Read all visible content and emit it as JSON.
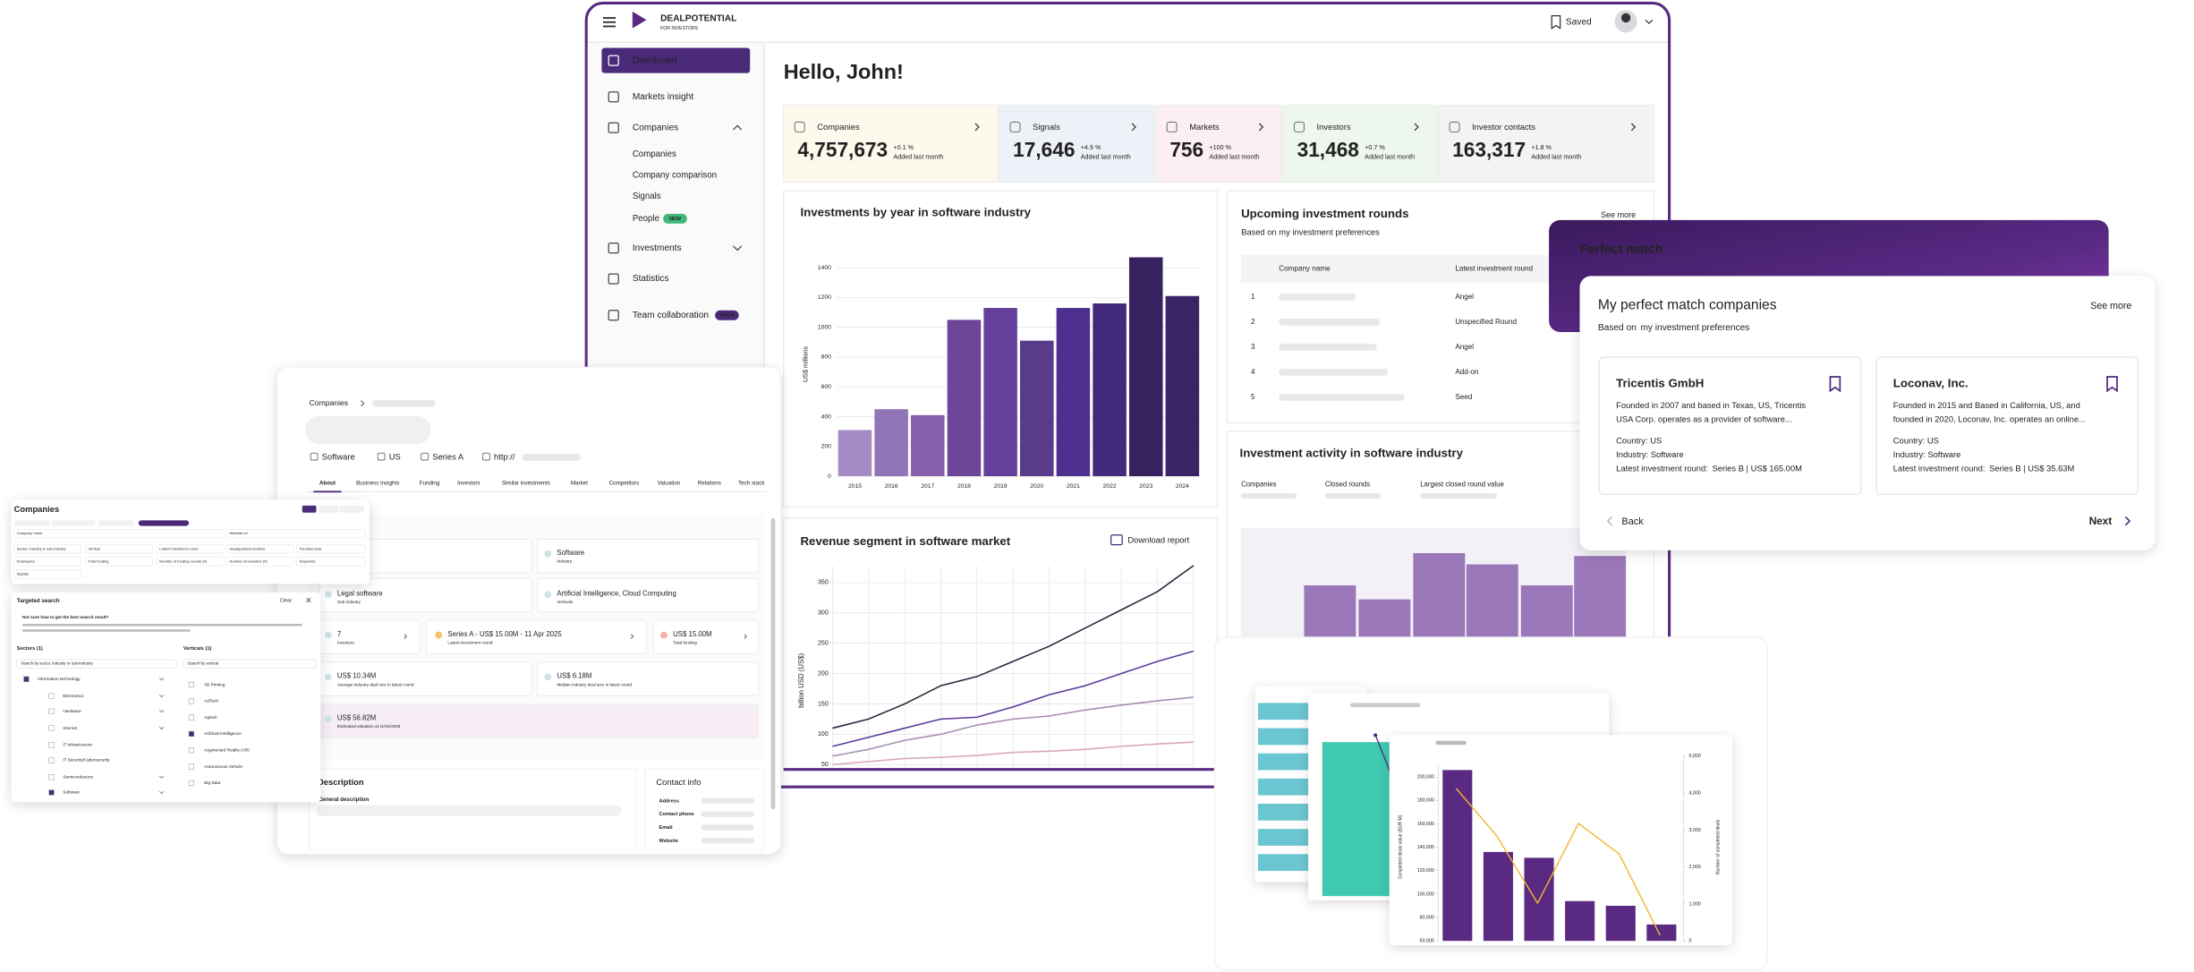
{
  "header": {
    "brand": "DEALPOTENTIAL",
    "tagline": "FOR INVESTORS",
    "saved": "Saved"
  },
  "nav": [
    "Dashboard",
    "Markets insight",
    "Companies",
    "Investments",
    "Statistics",
    "Team collaboration"
  ],
  "nav_badge": "SOON",
  "companies_menu": [
    "Companies",
    "Company comparison",
    "Signals",
    "People"
  ],
  "people_badge": "NEW",
  "greeting": "Hello, John!",
  "stats": [
    {
      "label": "Companies",
      "value": "4,757,673",
      "change": "+0.1 %",
      "note": "Added last month"
    },
    {
      "label": "Signals",
      "value": "17,646",
      "change": "+4.9 %",
      "note": "Added last month"
    },
    {
      "label": "Markets",
      "value": "756",
      "change": "+100 %",
      "note": "Added last month"
    },
    {
      "label": "Investors",
      "value": "31,468",
      "change": "+0.7 %",
      "note": "Added last month"
    },
    {
      "label": "Investor contacts",
      "value": "163,317",
      "change": "+1.8 %",
      "note": "Added last month"
    }
  ],
  "investments_chart": {
    "type": "bar",
    "title": "Investments by year in software industry",
    "ylabel": "US$ millions",
    "categories": [
      "2015",
      "2016",
      "2017",
      "2018",
      "2019",
      "2020",
      "2021",
      "2022",
      "2023",
      "2024"
    ],
    "values": [
      310,
      450,
      410,
      1050,
      1130,
      910,
      1130,
      1160,
      1470,
      1210
    ],
    "colors": [
      "#a68cc4",
      "#9274b8",
      "#8660ad",
      "#6c4698",
      "#65409a",
      "#5a3a8a",
      "#4e3090",
      "#43297c",
      "#36225f",
      "#3a2466"
    ],
    "ylim": [
      0,
      1500
    ],
    "yticks": [
      0,
      200,
      400,
      600,
      800,
      1000,
      1200,
      1400
    ],
    "grid": true
  },
  "revenue_chart": {
    "type": "line",
    "title": "Revenue segment in software market",
    "action": "Download report",
    "ylabel": "billion USD (US$)",
    "ylim": [
      45,
      385
    ],
    "yticks": [
      50,
      100,
      150,
      200,
      250,
      300,
      350
    ],
    "grid": true,
    "series": [
      {
        "color": "#2e2340",
        "values": [
          110,
          125,
          150,
          180,
          195,
          220,
          245,
          275,
          305,
          335,
          378
        ]
      },
      {
        "color": "#5b3a9a",
        "values": [
          80,
          95,
          110,
          125,
          128,
          145,
          165,
          180,
          200,
          220,
          237
        ]
      },
      {
        "color": "#a58bb3",
        "values": [
          64,
          75,
          90,
          100,
          115,
          125,
          130,
          140,
          148,
          155,
          161
        ]
      },
      {
        "color": "#d7a8b5",
        "values": [
          50,
          55,
          60,
          62,
          65,
          70,
          72,
          75,
          80,
          84,
          87
        ]
      }
    ]
  },
  "upcoming": {
    "title": "Upcoming investment rounds",
    "subtitle": "Based on my investment preferences",
    "more": "See more",
    "columns": [
      "Company name",
      "Latest investment round"
    ],
    "rows": [
      [
        "1",
        "Angel"
      ],
      [
        "2",
        "Unspecified Round"
      ],
      [
        "3",
        "Angel"
      ],
      [
        "4",
        "Add-on"
      ],
      [
        "5",
        "Seed"
      ]
    ]
  },
  "activity": {
    "title": "Investment activity in software industry",
    "columns": [
      "Companies",
      "Closed rounds",
      "Largest closed round value"
    ]
  },
  "perfect_match": {
    "banner": "Perfect match",
    "title": "My perfect match companies",
    "more": "See more",
    "based": "Based on",
    "link": "my investment preferences",
    "back": "Back",
    "next": "Next",
    "cards": [
      {
        "name": "Tricentis GmbH",
        "description": "Founded in 2007 and based in Texas, US, Tricentis USA Corp. operates as a provider of software...",
        "country": "Country: US",
        "industry": "Industry: Software",
        "round_label": "Latest investment round:",
        "round": "Series B | US$ 165.00M"
      },
      {
        "name": "Loconav, Inc.",
        "description": "Founded in 2015 and Based in California, US, and founded in 2020, Loconav, Inc. operates an online...",
        "country": "Country: US",
        "industry": "Industry: Software",
        "round_label": "Latest investment round:",
        "round": "Series B | US$ 35.63M"
      }
    ]
  },
  "company": {
    "breadcrumb": "Companies",
    "tags": [
      "Software",
      "US",
      "Series A",
      "http://"
    ],
    "tabs": [
      "About",
      "Business insights",
      "Funding",
      "Investors",
      "Similar investments",
      "Market",
      "Competitors",
      "Valuation",
      "Relations",
      "Tech stack"
    ],
    "facts": [
      {
        "value": "Software",
        "label": "Industry"
      },
      {
        "value": "Legal software",
        "label": "Sub industry"
      },
      {
        "value": "Artificial Intelligence, Cloud Computing",
        "label": "Verticals"
      },
      {
        "value": "7",
        "label": "Investors"
      },
      {
        "value": "Series A - US$ 15.00M - 11 Apr 2025",
        "label": "Latest investment round"
      },
      {
        "value": "US$ 15.00M",
        "label": "Total funding"
      },
      {
        "value": "US$ 10.34M",
        "label": "Average industry deal size in latest round"
      },
      {
        "value": "US$ 6.18M",
        "label": "Median industry deal size in latest round"
      },
      {
        "value": "US$ 56.82M",
        "label": "Estimated valuation at 11/04/2025"
      }
    ],
    "description": "Description",
    "general": "General description",
    "contact": "Contact info",
    "contact_fields": [
      "Address",
      "Contact phone",
      "Email",
      "Website"
    ]
  },
  "search": {
    "title": "Companies",
    "fields": [
      "Company name",
      "Website url",
      "Sector, industry & sub-industry",
      "Vertical",
      "Latest investment round",
      "Headquarters location",
      "Founded year",
      "Employees",
      "Total funding",
      "Number of funding rounds (#)",
      "Number of investors (#)",
      "Keywords",
      "Signals"
    ],
    "targeted": "Targeted search",
    "clear": "Clear",
    "hint": "Not sure how to get the best search result?",
    "sectors_title": "Sectors (1)",
    "verticals_title": "Verticals (1)",
    "sector_placeholder": "Search by sector, industry or sub-industry",
    "vertical_placeholder": "Search by vertical",
    "sectors": [
      "Information technology",
      "Electronics",
      "Hardware",
      "Internet",
      "IT infrastructure",
      "IT Security/Cybersecurity",
      "Semiconductors",
      "Software"
    ],
    "verticals": [
      "3D Printing",
      "AdTech",
      "Agtech",
      "Artificial Intelligence",
      "Augmented Reality (AR)",
      "Autonomous Vehicle",
      "Big Data"
    ]
  },
  "deals_chart": {
    "type": "bar",
    "ylabel": "Completed deals value (EUR M)",
    "y2label": "Number of completed deals",
    "values": [
      206000,
      136000,
      131000,
      94000,
      90000,
      74000
    ],
    "color": "#5a2a82",
    "line": {
      "values": [
        4130,
        2840,
        1020,
        3180,
        2350,
        150
      ],
      "color": "#f5b52e",
      "axis": "y2"
    },
    "ylim": [
      60000,
      210000
    ],
    "yticks": [
      {
        "value": 60000,
        "label": "60,000"
      },
      {
        "value": 80000,
        "label": "80,000"
      },
      {
        "value": 100000,
        "label": "100,000"
      },
      {
        "value": 120000,
        "label": "120,000"
      },
      {
        "value": 140000,
        "label": "140,000"
      },
      {
        "value": 160000,
        "label": "160,000"
      },
      {
        "value": 180000,
        "label": "180,000"
      },
      {
        "value": 200000,
        "label": "200,000"
      }
    ],
    "y2lim": [
      0,
      5000
    ],
    "y2ticks": [
      0,
      {
        "value": 1000,
        "label": "1,000"
      },
      {
        "value": 2000,
        "label": "2,000"
      },
      {
        "value": 3000,
        "label": "3,000"
      },
      {
        "value": 4000,
        "label": "4,000"
      },
      {
        "value": 5000,
        "label": "5,000"
      }
    ]
  }
}
